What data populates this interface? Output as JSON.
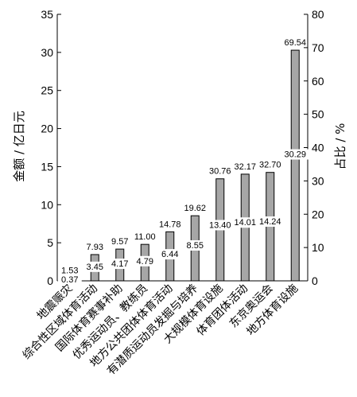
{
  "chart_data": {
    "type": "bar",
    "categories": [
      "地震赈灾",
      "综合性区域体育活动",
      "国际体育赛事补助",
      "优秀运动员、教练员",
      "地方公共团体体育活动",
      "有潜质运动员发掘与培养",
      "大规模体育设施",
      "体育团体活动",
      "东京奥运会",
      "地方体育设施"
    ],
    "series": [
      {
        "axis": "left",
        "values": [
          0.37,
          3.45,
          4.17,
          4.79,
          6.44,
          8.55,
          13.4,
          14.01,
          14.24,
          30.29
        ]
      },
      {
        "axis": "right",
        "values": [
          1.53,
          7.93,
          9.57,
          11.0,
          14.78,
          19.62,
          30.76,
          32.17,
          32.7,
          69.54
        ]
      }
    ],
    "value_labels": [
      "0.37",
      "3.45",
      "4.17",
      "4.79",
      "6.44",
      "8.55",
      "13.40",
      "14.01",
      "14.24",
      "30.29"
    ],
    "percent_labels": [
      "1.53",
      "7.93",
      "9.57",
      "11.00",
      "14.78",
      "19.62",
      "30.76",
      "32.17",
      "32.70",
      "69.54"
    ],
    "ylabel": "金额 / 亿日元",
    "y2label": "占比 / %",
    "ylim": [
      0,
      35
    ],
    "y2lim": [
      0,
      80
    ],
    "yticks": [
      "0",
      "5",
      "10",
      "15",
      "20",
      "25",
      "30",
      "35"
    ],
    "y2ticks": [
      "0",
      "10",
      "20",
      "30",
      "40",
      "50",
      "60",
      "70",
      "80"
    ],
    "grid": false,
    "bar_color": "#a6a6a6"
  }
}
